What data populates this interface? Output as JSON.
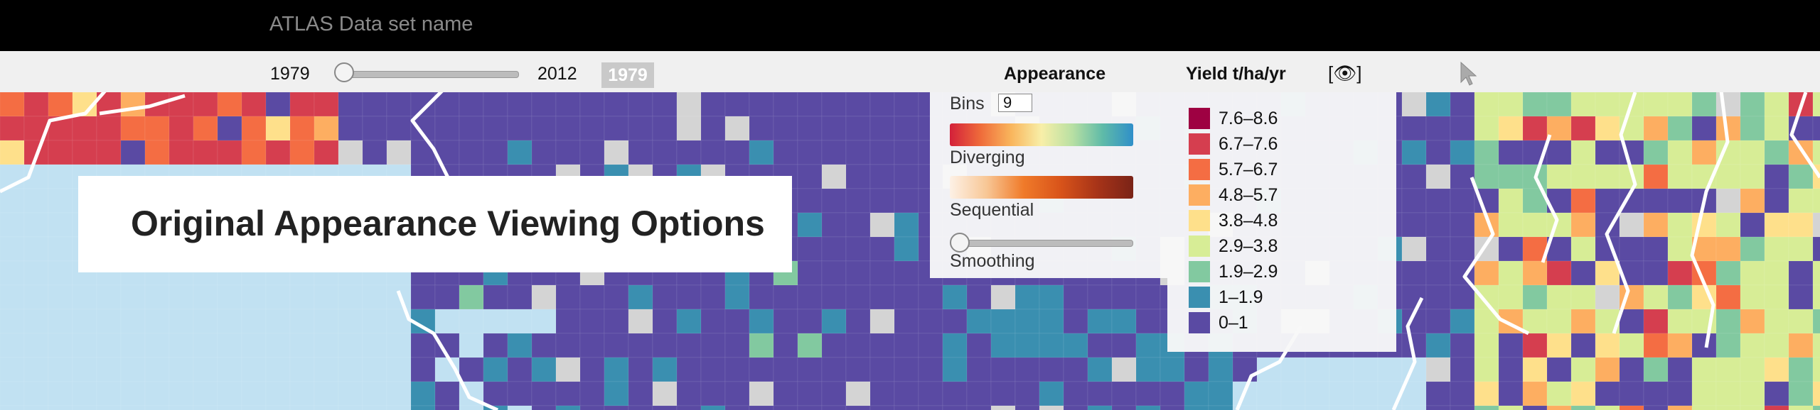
{
  "app": {
    "title": "ATLAS Data set name"
  },
  "timeline": {
    "start_year": "1979",
    "end_year": "2012",
    "current_year": "1979",
    "position": 0.0
  },
  "headers": {
    "appearance": "Appearance",
    "variable": "Yield t/ha/yr",
    "visibility_toggle": "[👁]"
  },
  "appearance": {
    "bins_label": "Bins",
    "bins_value": "9",
    "diverging_label": "Diverging",
    "sequential_label": "Sequential",
    "smoothing_label": "Smoothing",
    "smoothing_value": 0.0
  },
  "legend": {
    "items": [
      {
        "label": "7.6–8.6",
        "color": "#9e0142"
      },
      {
        "label": "6.7–7.6",
        "color": "#d53e4f"
      },
      {
        "label": "5.7–6.7",
        "color": "#f46d43"
      },
      {
        "label": "4.8–5.7",
        "color": "#fdae61"
      },
      {
        "label": "3.8–4.8",
        "color": "#fee08b"
      },
      {
        "label": "2.9–3.8",
        "color": "#d7ed96"
      },
      {
        "label": "1.9–2.9",
        "color": "#82c9a0"
      },
      {
        "label": "1–1.9",
        "color": "#3a8fb0"
      },
      {
        "label": "0–1",
        "color": "#5a4aa3"
      }
    ]
  },
  "callout": {
    "text": "Original Appearance Viewing Options"
  },
  "colors": {
    "ocean": "#c1e1f2",
    "land_nodata": "#d4d4d4",
    "border": "#ffffff"
  }
}
